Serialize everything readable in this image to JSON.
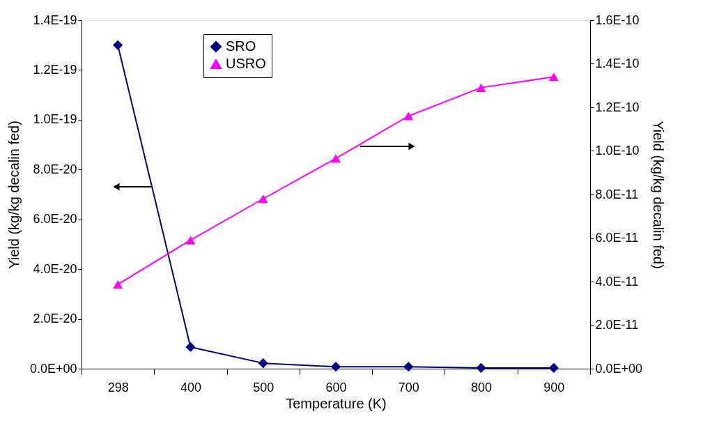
{
  "chart_data": {
    "type": "line",
    "xlabel": "Temperature (K)",
    "ylabel": "Yield (kg/kg decalin fed)",
    "y2label": "Yield (kg/kg decalin fed)",
    "categories": [
      "298",
      "400",
      "500",
      "600",
      "700",
      "800",
      "900"
    ],
    "series": [
      {
        "name": "SRO",
        "color": "#000080",
        "marker": "diamond",
        "values": [
          1.3e-19,
          8.7e-21,
          2.2e-21,
          8e-22,
          8e-22,
          3e-22,
          3e-22
        ]
      },
      {
        "name": "USRO",
        "color": "#ff00ff",
        "marker": "triangle",
        "axis": "y2",
        "values": [
          3.87e-11,
          5.9e-11,
          7.8e-11,
          9.65e-11,
          1.16e-10,
          1.29e-10,
          1.34e-10
        ]
      }
    ],
    "ylim": [
      0,
      1.4e-19
    ],
    "yticks": [
      {
        "value": 0,
        "label": "0.0E+00"
      },
      {
        "value": 2e-20,
        "label": "2.0E-20"
      },
      {
        "value": 4e-20,
        "label": "4.0E-20"
      },
      {
        "value": 6e-20,
        "label": "6.0E-20"
      },
      {
        "value": 8e-20,
        "label": "8.0E-20"
      },
      {
        "value": 1e-19,
        "label": "1.0E-19"
      },
      {
        "value": 1.2e-19,
        "label": "1.2E-19"
      },
      {
        "value": 1.4e-19,
        "label": "1.4E-19"
      }
    ],
    "y2lim": [
      0,
      1.6e-10
    ],
    "y2ticks": [
      {
        "value": 0,
        "label": "0.0E+00"
      },
      {
        "value": 2e-11,
        "label": "2.0E-11"
      },
      {
        "value": 4e-11,
        "label": "4.0E-11"
      },
      {
        "value": 6e-11,
        "label": "6.0E-11"
      },
      {
        "value": 8e-11,
        "label": "8.0E-11"
      },
      {
        "value": 1e-10,
        "label": "1.0E-10"
      },
      {
        "value": 1.2e-10,
        "label": "1.2E-10"
      },
      {
        "value": 1.4e-10,
        "label": "1.4E-10"
      },
      {
        "value": 1.6e-10,
        "label": "1.6E-10"
      }
    ],
    "grid": false,
    "legend": "top left",
    "line_style": "solid"
  }
}
